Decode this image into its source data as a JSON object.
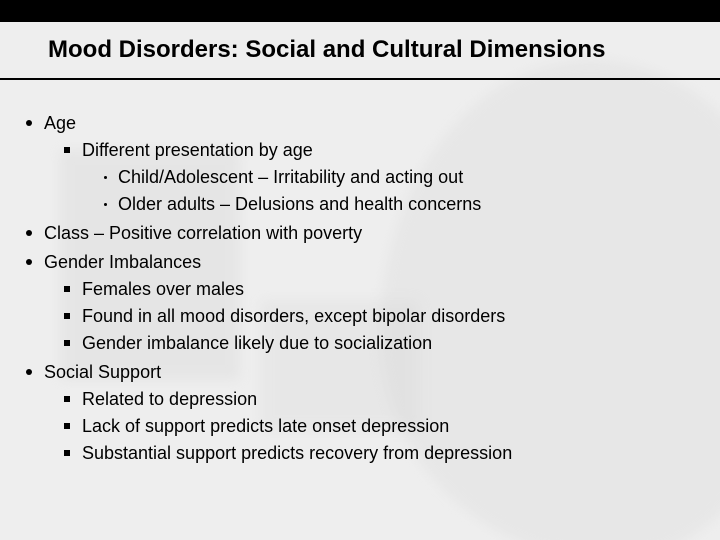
{
  "background_color": "#eeeeee",
  "top_bar_color": "#000000",
  "title_text_color": "#000000",
  "body_text_color": "#000000",
  "title_fontsize_pt": 18,
  "body_fontsize_pt": 14,
  "title": "Mood Disorders:  Social and Cultural Dimensions",
  "bullets": {
    "b1": "Age",
    "b1_1": "Different presentation by age",
    "b1_1_1": "Child/Adolescent – Irritability and acting out",
    "b1_1_2": "Older adults – Delusions and health concerns",
    "b2": "Class – Positive correlation with poverty",
    "b3": "Gender Imbalances",
    "b3_1": "Females over males",
    "b3_2": "Found in all mood disorders, except bipolar disorders",
    "b3_3": "Gender imbalance likely due to socialization",
    "b4": "Social Support",
    "b4_1": "Related to depression",
    "b4_2": "Lack of support predicts late onset depression",
    "b4_3": "Substantial support predicts recovery from depression"
  },
  "ghost_shapes": {
    "color": "#cfcfcf",
    "opacity": 0.22
  }
}
